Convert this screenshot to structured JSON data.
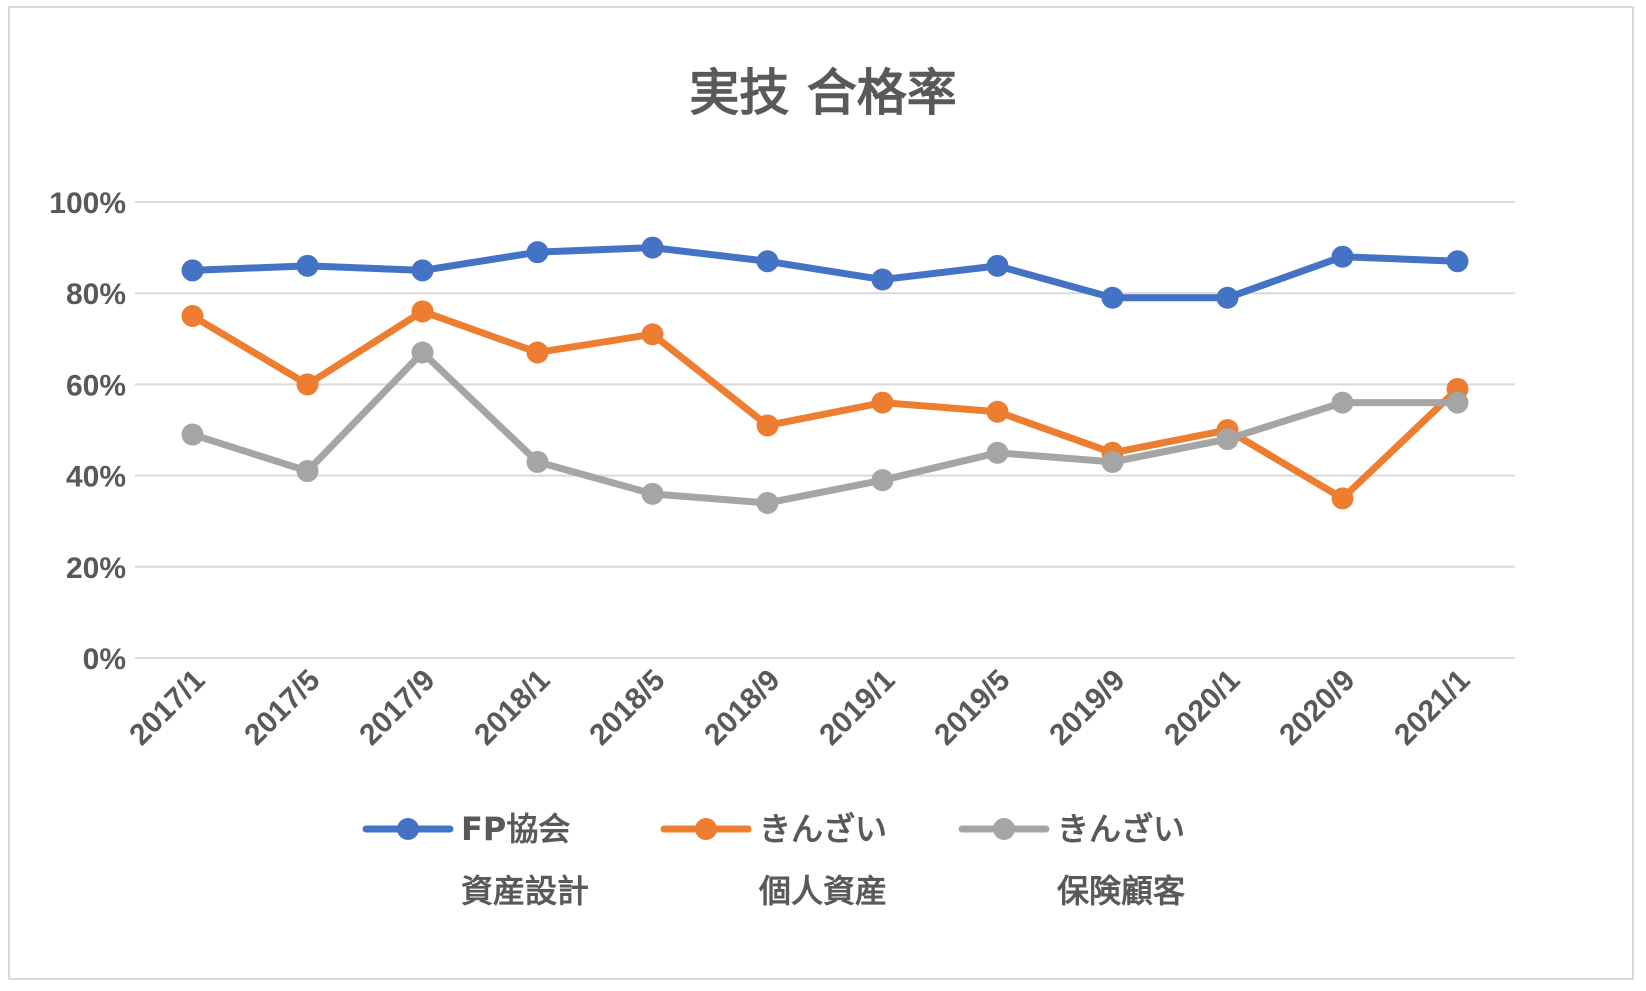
{
  "chart_data": {
    "type": "line",
    "title": "実技 合格率",
    "xlabel": "",
    "ylabel": "",
    "ylim": [
      0,
      100
    ],
    "yticks": [
      "0%",
      "20%",
      "40%",
      "60%",
      "80%",
      "100%"
    ],
    "categories": [
      "2017/1",
      "2017/5",
      "2017/9",
      "2018/1",
      "2018/5",
      "2018/9",
      "2019/1",
      "2019/5",
      "2019/9",
      "2020/1",
      "2020/9",
      "2021/1"
    ],
    "grid": true,
    "legend_position": "bottom",
    "series": [
      {
        "name_line1": "FP協会",
        "name_line2": "資産設計",
        "color": "#4472c4",
        "values": [
          85,
          86,
          85,
          89,
          90,
          87,
          83,
          86,
          79,
          79,
          88,
          87
        ]
      },
      {
        "name_line1": "きんざい",
        "name_line2": "個人資産",
        "color": "#ed7d31",
        "values": [
          75,
          60,
          76,
          67,
          71,
          51,
          56,
          54,
          45,
          50,
          35,
          59
        ]
      },
      {
        "name_line1": "きんざい",
        "name_line2": "保険顧客",
        "color": "#a5a5a5",
        "values": [
          49,
          41,
          67,
          43,
          36,
          34,
          39,
          45,
          43,
          48,
          56,
          56
        ]
      }
    ]
  }
}
